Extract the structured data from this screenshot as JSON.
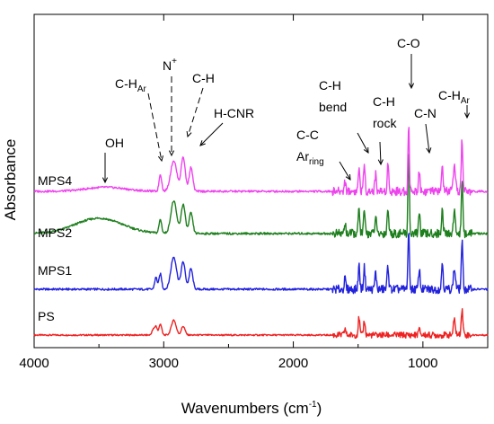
{
  "chart_data": {
    "type": "line",
    "xlabel": "Wavenumbers (cm",
    "xlabel_sup": "-1",
    "xlabel_close": ")",
    "ylabel": "Absorbance",
    "xlim": [
      4000,
      500
    ],
    "x_reversed": true,
    "x_ticks": [
      4000,
      3000,
      2000,
      1000
    ],
    "x_tick_labels": [
      "4000",
      "3000",
      "2000",
      "1000"
    ],
    "grid": false,
    "series": [
      {
        "name": "PS",
        "color": "#ee2222",
        "baseline": 0.2,
        "peaks": [
          {
            "x": 3082,
            "h": 0.2,
            "w": 10
          },
          {
            "x": 3060,
            "h": 0.35,
            "w": 10
          },
          {
            "x": 3026,
            "h": 0.45,
            "w": 10
          },
          {
            "x": 2923,
            "h": 0.6,
            "w": 18
          },
          {
            "x": 2850,
            "h": 0.35,
            "w": 14
          },
          {
            "x": 1601,
            "h": 0.25,
            "w": 6
          },
          {
            "x": 1493,
            "h": 0.7,
            "w": 6
          },
          {
            "x": 1452,
            "h": 0.6,
            "w": 6
          },
          {
            "x": 1028,
            "h": 0.2,
            "w": 8
          },
          {
            "x": 757,
            "h": 0.6,
            "w": 8
          },
          {
            "x": 698,
            "h": 1.0,
            "w": 7
          }
        ]
      },
      {
        "name": "MPS1",
        "color": "#2222dd",
        "baseline": 0.4,
        "peaks": [
          {
            "x": 3060,
            "h": 0.35,
            "w": 10
          },
          {
            "x": 3026,
            "h": 0.45,
            "w": 10
          },
          {
            "x": 2923,
            "h": 0.95,
            "w": 22
          },
          {
            "x": 2850,
            "h": 0.8,
            "w": 16
          },
          {
            "x": 2790,
            "h": 0.6,
            "w": 14
          },
          {
            "x": 1601,
            "h": 0.3,
            "w": 6
          },
          {
            "x": 1493,
            "h": 0.7,
            "w": 6
          },
          {
            "x": 1452,
            "h": 0.65,
            "w": 6
          },
          {
            "x": 1365,
            "h": 0.5,
            "w": 6
          },
          {
            "x": 1270,
            "h": 0.7,
            "w": 6
          },
          {
            "x": 1110,
            "h": 1.6,
            "w": 6
          },
          {
            "x": 1028,
            "h": 0.6,
            "w": 6
          },
          {
            "x": 850,
            "h": 0.8,
            "w": 6
          },
          {
            "x": 757,
            "h": 0.6,
            "w": 8
          },
          {
            "x": 698,
            "h": 1.4,
            "w": 6
          }
        ]
      },
      {
        "name": "MPS2",
        "color": "#1d7f1d",
        "baseline": 0.5,
        "peaks": [
          {
            "x": 3500,
            "h": 0.45,
            "w": 180
          },
          {
            "x": 3026,
            "h": 0.4,
            "w": 10
          },
          {
            "x": 2923,
            "h": 0.95,
            "w": 22
          },
          {
            "x": 2850,
            "h": 0.85,
            "w": 16
          },
          {
            "x": 2790,
            "h": 0.6,
            "w": 14
          },
          {
            "x": 1601,
            "h": 0.3,
            "w": 6
          },
          {
            "x": 1493,
            "h": 0.7,
            "w": 6
          },
          {
            "x": 1452,
            "h": 0.65,
            "w": 6
          },
          {
            "x": 1365,
            "h": 0.5,
            "w": 6
          },
          {
            "x": 1270,
            "h": 0.75,
            "w": 6
          },
          {
            "x": 1110,
            "h": 2.6,
            "w": 5
          },
          {
            "x": 1028,
            "h": 0.6,
            "w": 6
          },
          {
            "x": 850,
            "h": 0.7,
            "w": 6
          },
          {
            "x": 757,
            "h": 0.6,
            "w": 8
          },
          {
            "x": 698,
            "h": 1.5,
            "w": 6
          }
        ]
      },
      {
        "name": "MPS4",
        "color": "#ee44ee",
        "baseline": 0.2,
        "peaks": [
          {
            "x": 3450,
            "h": 0.12,
            "w": 150
          },
          {
            "x": 3026,
            "h": 0.5,
            "w": 10
          },
          {
            "x": 2923,
            "h": 0.9,
            "w": 24
          },
          {
            "x": 2850,
            "h": 1.0,
            "w": 16
          },
          {
            "x": 2790,
            "h": 0.7,
            "w": 14
          },
          {
            "x": 1601,
            "h": 0.3,
            "w": 6
          },
          {
            "x": 1493,
            "h": 0.7,
            "w": 6
          },
          {
            "x": 1452,
            "h": 0.8,
            "w": 6
          },
          {
            "x": 1365,
            "h": 0.5,
            "w": 6
          },
          {
            "x": 1270,
            "h": 0.8,
            "w": 6
          },
          {
            "x": 1110,
            "h": 2.0,
            "w": 5
          },
          {
            "x": 1028,
            "h": 0.6,
            "w": 6
          },
          {
            "x": 850,
            "h": 0.75,
            "w": 6
          },
          {
            "x": 757,
            "h": 0.7,
            "w": 8
          },
          {
            "x": 698,
            "h": 1.5,
            "w": 6
          }
        ]
      }
    ],
    "annotations": [
      {
        "main": "OH",
        "sub": "",
        "sup": "",
        "line2": "",
        "x": 3460
      },
      {
        "main": "C-H",
        "sub": "Ar",
        "sup": "",
        "line2": "",
        "x": 3026
      },
      {
        "main": "N",
        "sub": "",
        "sup": "+",
        "line2": "",
        "x": 2960
      },
      {
        "main": "C-H",
        "sub": "",
        "sup": "",
        "line2": "",
        "x": 2870
      },
      {
        "main": "H-CNR",
        "sub": "",
        "sup": "",
        "line2": "",
        "x": 2790
      },
      {
        "main": "C-C",
        "sub": "",
        "sup": "",
        "line2": "Ar",
        "line2_sub": "ring",
        "x": 1601
      },
      {
        "main": "C-H",
        "sub": "",
        "sup": "",
        "line2": "bend",
        "x": 1452
      },
      {
        "main": "C-H",
        "sub": "",
        "sup": "",
        "line2": "rock",
        "x": 1365
      },
      {
        "main": "C-O",
        "sub": "",
        "sup": "",
        "line2": "",
        "x": 1110
      },
      {
        "main": "C-N",
        "sub": "",
        "sup": "",
        "line2": "",
        "x": 1028
      },
      {
        "main": "C-H",
        "sub": "Ar",
        "sup": "",
        "line2": "",
        "x": 698
      }
    ]
  }
}
